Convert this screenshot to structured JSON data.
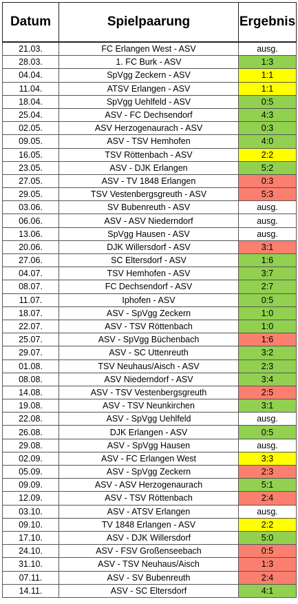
{
  "headers": {
    "datum": "Datum",
    "spielpaarung": "Spielpaarung",
    "ergebnis": "Ergebnis"
  },
  "colors": {
    "win": "#92d050",
    "draw": "#ffff00",
    "loss": "#fa7f6e",
    "cancelled": "#ffffff"
  },
  "rows": [
    {
      "datum": "21.03.",
      "spiel": "FC Erlangen West - ASV",
      "ergebnis": "ausg.",
      "status": "none"
    },
    {
      "datum": "28.03.",
      "spiel": "1. FC Burk - ASV",
      "ergebnis": "1:3",
      "status": "green"
    },
    {
      "datum": "04.04.",
      "spiel": "SpVgg Zeckern - ASV",
      "ergebnis": "1:1",
      "status": "yellow"
    },
    {
      "datum": "11.04.",
      "spiel": "ATSV Erlangen - ASV",
      "ergebnis": "1:1",
      "status": "yellow"
    },
    {
      "datum": "18.04.",
      "spiel": "SpVgg Uehlfeld - ASV",
      "ergebnis": "0:5",
      "status": "green"
    },
    {
      "datum": "25.04.",
      "spiel": "ASV - FC Dechsendorf",
      "ergebnis": "4:3",
      "status": "green"
    },
    {
      "datum": "02.05.",
      "spiel": "ASV Herzogenaurach - ASV",
      "ergebnis": "0:3",
      "status": "green"
    },
    {
      "datum": "09.05.",
      "spiel": "ASV - TSV Hemhofen",
      "ergebnis": "4:0",
      "status": "green"
    },
    {
      "datum": "16.05.",
      "spiel": "TSV Röttenbach - ASV",
      "ergebnis": "2:2",
      "status": "yellow"
    },
    {
      "datum": "23.05.",
      "spiel": "ASV - DJK Erlangen",
      "ergebnis": "5:2",
      "status": "green"
    },
    {
      "datum": "27.05.",
      "spiel": "ASV - TV 1848 Erlangen",
      "ergebnis": "0:3",
      "status": "red"
    },
    {
      "datum": "29.05.",
      "spiel": "TSV Vestenbergsgreuth - ASV",
      "ergebnis": "5:3",
      "status": "red"
    },
    {
      "datum": "03.06.",
      "spiel": "SV Bubenreuth - ASV",
      "ergebnis": "ausg.",
      "status": "none"
    },
    {
      "datum": "06.06.",
      "spiel": "ASV - ASV Niederndorf",
      "ergebnis": "ausg.",
      "status": "none"
    },
    {
      "datum": "13.06.",
      "spiel": "SpVgg Hausen - ASV",
      "ergebnis": "ausg.",
      "status": "none"
    },
    {
      "datum": "20.06.",
      "spiel": "DJK Willersdorf - ASV",
      "ergebnis": "3:1",
      "status": "red"
    },
    {
      "datum": "27.06.",
      "spiel": "SC Eltersdorf - ASV",
      "ergebnis": "1:6",
      "status": "green"
    },
    {
      "datum": "04.07.",
      "spiel": "TSV Hemhofen - ASV",
      "ergebnis": "3:7",
      "status": "green"
    },
    {
      "datum": "08.07.",
      "spiel": "FC Dechsendorf - ASV",
      "ergebnis": "2:7",
      "status": "green"
    },
    {
      "datum": "11.07.",
      "spiel": "Iphofen - ASV",
      "ergebnis": "0:5",
      "status": "green"
    },
    {
      "datum": "18.07.",
      "spiel": "ASV - SpVgg Zeckern",
      "ergebnis": "1:0",
      "status": "green"
    },
    {
      "datum": "22.07.",
      "spiel": "ASV - TSV Röttenbach",
      "ergebnis": "1:0",
      "status": "green"
    },
    {
      "datum": "25.07.",
      "spiel": "ASV - SpVgg Büchenbach",
      "ergebnis": "1:6",
      "status": "red"
    },
    {
      "datum": "29.07.",
      "spiel": "ASV - SC Uttenreuth",
      "ergebnis": "3:2",
      "status": "green"
    },
    {
      "datum": "01.08.",
      "spiel": "TSV Neuhaus/Aisch - ASV",
      "ergebnis": "2:3",
      "status": "green"
    },
    {
      "datum": "08.08.",
      "spiel": "ASV Niederndorf - ASV",
      "ergebnis": "3:4",
      "status": "green"
    },
    {
      "datum": "14.08.",
      "spiel": "ASV - TSV Vestenbergsgreuth",
      "ergebnis": "2:5",
      "status": "red"
    },
    {
      "datum": "19.08.",
      "spiel": "ASV - TSV Neunkirchen",
      "ergebnis": "3:1",
      "status": "green"
    },
    {
      "datum": "22.08.",
      "spiel": "ASV - SpVgg Uehlfeld",
      "ergebnis": "ausg.",
      "status": "none"
    },
    {
      "datum": "26.08.",
      "spiel": "DJK Erlangen - ASV",
      "ergebnis": "0:5",
      "status": "green"
    },
    {
      "datum": "29.08.",
      "spiel": "ASV - SpVgg Hausen",
      "ergebnis": "ausg.",
      "status": "none"
    },
    {
      "datum": "02.09.",
      "spiel": "ASV - FC Erlangen West",
      "ergebnis": "3:3",
      "status": "yellow"
    },
    {
      "datum": "05.09.",
      "spiel": "ASV - SpVgg Zeckern",
      "ergebnis": "2:3",
      "status": "red"
    },
    {
      "datum": "09.09.",
      "spiel": "ASV - ASV Herzogenaurach",
      "ergebnis": "5:1",
      "status": "green"
    },
    {
      "datum": "12.09.",
      "spiel": "ASV - TSV Röttenbach",
      "ergebnis": "2:4",
      "status": "red"
    },
    {
      "datum": "03.10.",
      "spiel": "ASV - ATSV Erlangen",
      "ergebnis": "ausg.",
      "status": "none"
    },
    {
      "datum": "09.10.",
      "spiel": "TV 1848 Erlangen - ASV",
      "ergebnis": "2:2",
      "status": "yellow"
    },
    {
      "datum": "17.10.",
      "spiel": "ASV - DJK Willersdorf",
      "ergebnis": "5:0",
      "status": "green"
    },
    {
      "datum": "24.10.",
      "spiel": "ASV - FSV Großenseebach",
      "ergebnis": "0:5",
      "status": "red"
    },
    {
      "datum": "31.10.",
      "spiel": "ASV - TSV Neuhaus/Aisch",
      "ergebnis": "1:3",
      "status": "red"
    },
    {
      "datum": "07.11.",
      "spiel": "ASV - SV Bubenreuth",
      "ergebnis": "2:4",
      "status": "red"
    },
    {
      "datum": "14.11.",
      "spiel": "ASV - SC Eltersdorf",
      "ergebnis": "4:1",
      "status": "green"
    }
  ]
}
